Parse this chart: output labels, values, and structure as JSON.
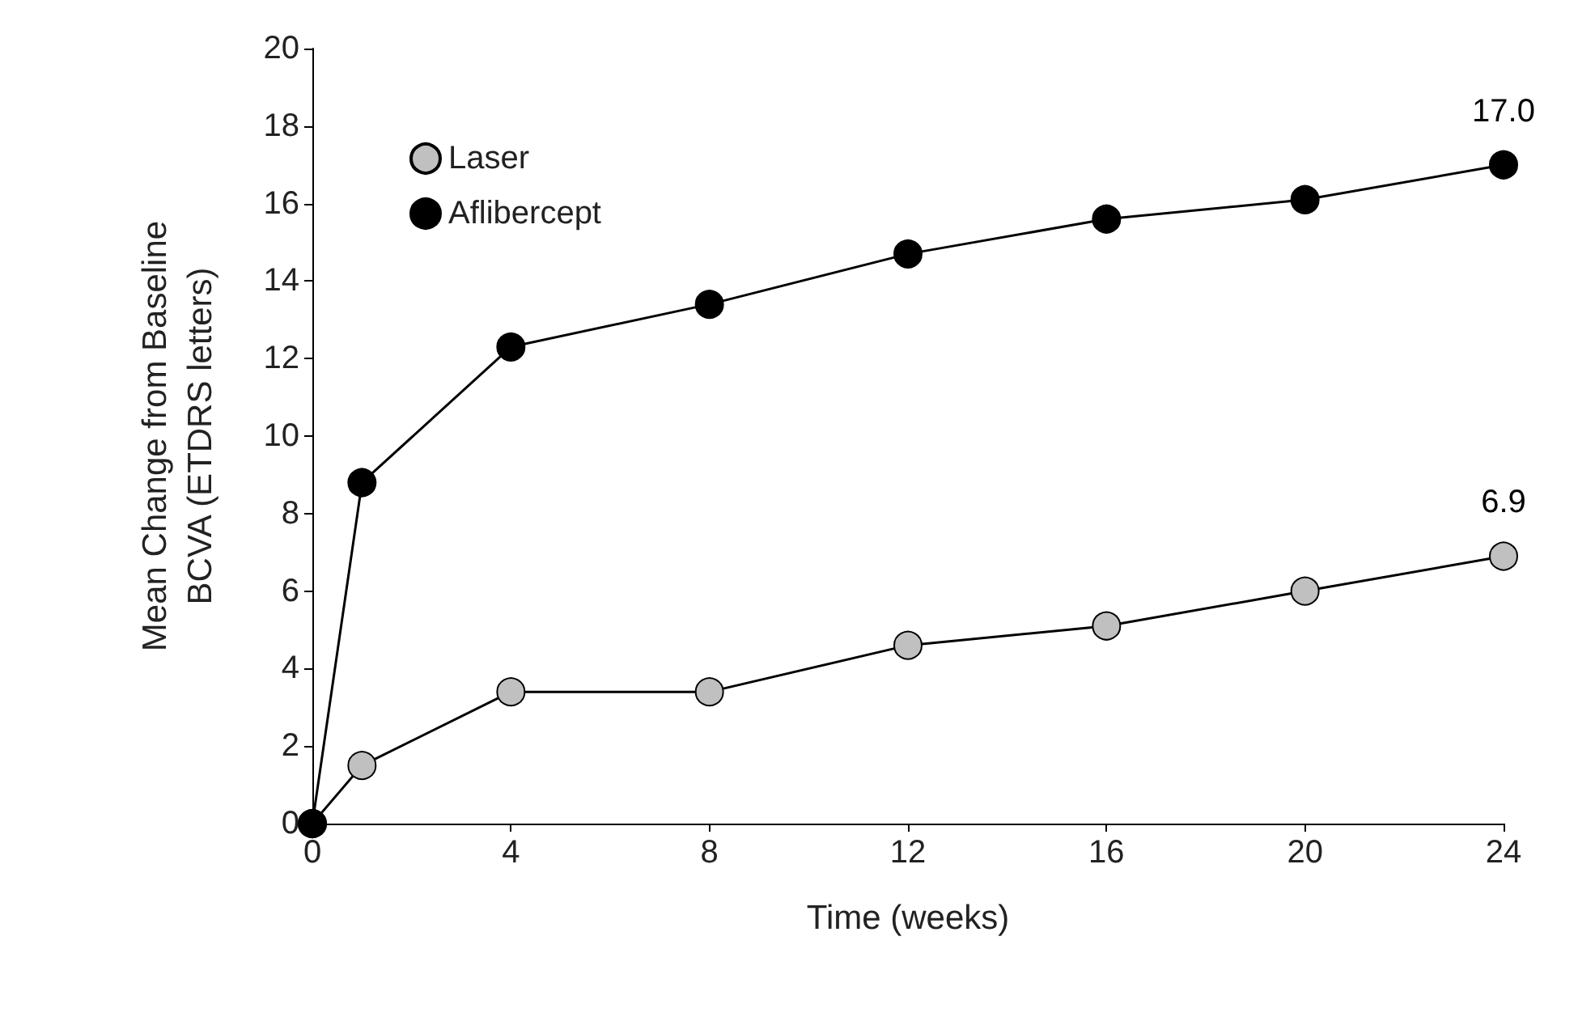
{
  "chart_data": {
    "type": "line",
    "xlabel": "Time (weeks)",
    "ylabel": "Mean Change from Baseline\nBCVA (ETDRS letters)",
    "xlim": [
      0,
      24
    ],
    "xticks": [
      0,
      4,
      8,
      12,
      16,
      20,
      24
    ],
    "ylim": [
      0,
      20
    ],
    "yticks": [
      0,
      2,
      4,
      6,
      8,
      10,
      12,
      14,
      16,
      18,
      20
    ],
    "grid": false,
    "legend": "top left",
    "marker": "circle",
    "line_style": "solid",
    "series": [
      {
        "name": "Laser",
        "color": "#c0c0c0",
        "x": [
          0,
          1,
          4,
          8,
          12,
          16,
          20,
          24
        ],
        "values": [
          0,
          1.5,
          3.4,
          3.4,
          4.6,
          5.1,
          6.0,
          6.9
        ],
        "value_labels": [
          null,
          null,
          null,
          null,
          null,
          null,
          null,
          "6.9"
        ]
      },
      {
        "name": "Aflibercept",
        "color": "#000000",
        "x": [
          0,
          1,
          4,
          8,
          12,
          16,
          20,
          24
        ],
        "values": [
          0,
          8.8,
          12.3,
          13.4,
          14.7,
          15.6,
          16.1,
          17.0
        ],
        "value_labels": [
          null,
          null,
          null,
          null,
          null,
          null,
          null,
          "17.0"
        ]
      }
    ]
  }
}
